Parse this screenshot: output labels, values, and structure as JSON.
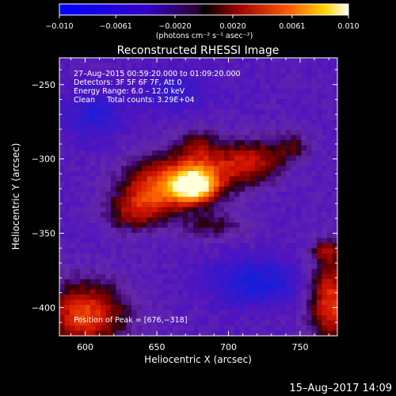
{
  "chart_data": {
    "type": "heatmap",
    "title": "Reconstructed RHESSI Image",
    "xlabel": "Heliocentric X (arcsec)",
    "ylabel": "Heliocentric Y (arcsec)",
    "xlim": [
      582,
      776
    ],
    "ylim": [
      -419,
      -232
    ],
    "xticks": [
      600,
      650,
      700,
      750
    ],
    "yticks": [
      -250,
      -300,
      -350,
      -400
    ],
    "xtick_labels": [
      "600",
      "650",
      "700",
      "750"
    ],
    "ytick_labels": [
      "−250",
      "−300",
      "−350",
      "−400"
    ],
    "colorbar": {
      "range": [
        -0.01,
        0.01
      ],
      "tick_values": [
        -0.01,
        -0.0061,
        -0.002,
        0.002,
        0.0061,
        0.01
      ],
      "tick_labels": [
        "−0.010",
        "−0.0061",
        "−0.0020",
        "0.0020",
        "0.0061",
        "0.010"
      ],
      "unit_label": "(photons cm⁻² s⁻¹ asec⁻²)",
      "colormap": [
        "#0000ff",
        "#2d00d2",
        "#4b00aa",
        "#5a1aa5",
        "#a80000",
        "#ff5000",
        "#ffd200",
        "#ffffff"
      ]
    },
    "info_lines": [
      "27–Aug–2015 00:59:20.000 to 01:09:20.000",
      "Detectors: 3F 5F 6F 7F, Att 0",
      "Energy Range: 6.0 – 12.0 keV",
      "Clean     Total counts: 3.29E+04"
    ],
    "peak_label": "Position of Peak = [676,−318]",
    "peak_position": [
      676,
      -318
    ],
    "grid": false
  },
  "timestamp": "15–Aug–2017 14:09"
}
